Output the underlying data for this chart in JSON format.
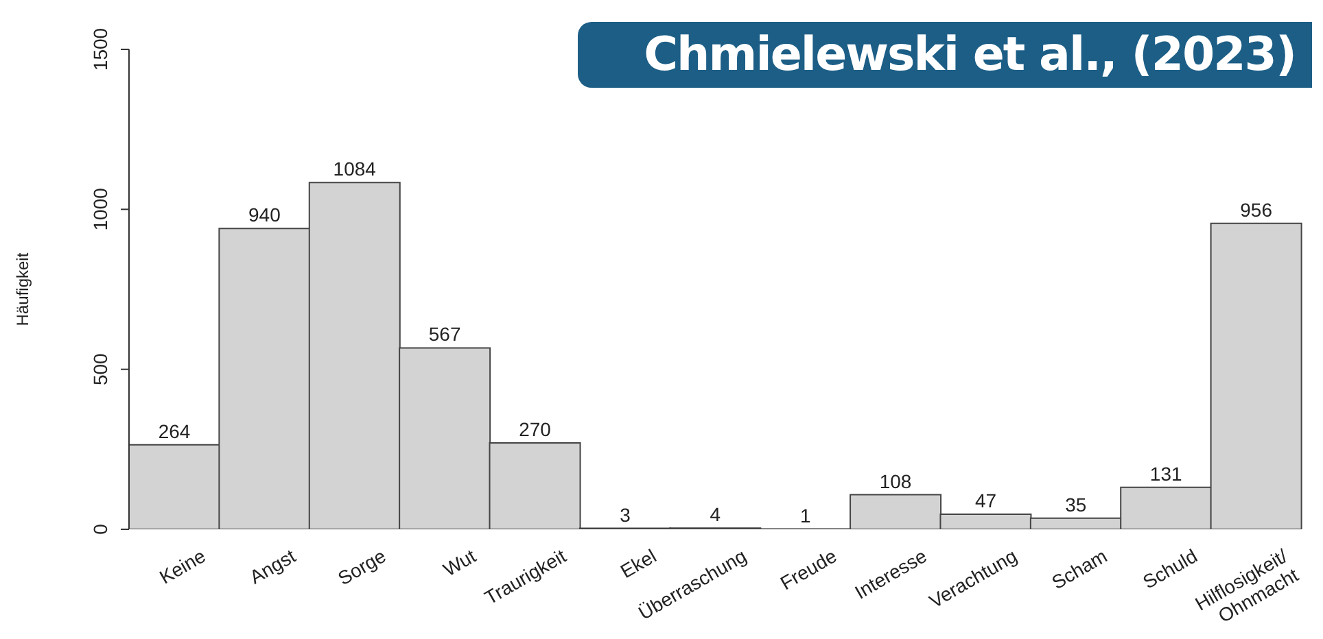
{
  "chart_data": {
    "type": "bar",
    "ylabel": "Häufigkeit",
    "categories": [
      "Keine",
      "Angst",
      "Sorge",
      "Wut",
      "Traurigkeit",
      "Ekel",
      "Überraschung",
      "Freude",
      "Interesse",
      "Verachtung",
      "Scham",
      "Schuld",
      "Hilflosigkeit/Ohnmacht"
    ],
    "values": [
      264,
      940,
      1084,
      567,
      270,
      3,
      4,
      1,
      108,
      47,
      35,
      131,
      956
    ],
    "color": "#d3d3d3",
    "ylim": [
      0,
      1500
    ],
    "yticks": [
      0,
      500,
      1000,
      1500
    ],
    "grid": false,
    "data_labels": true,
    "annotations": [
      "Chmielewski et al., (2023)"
    ]
  }
}
